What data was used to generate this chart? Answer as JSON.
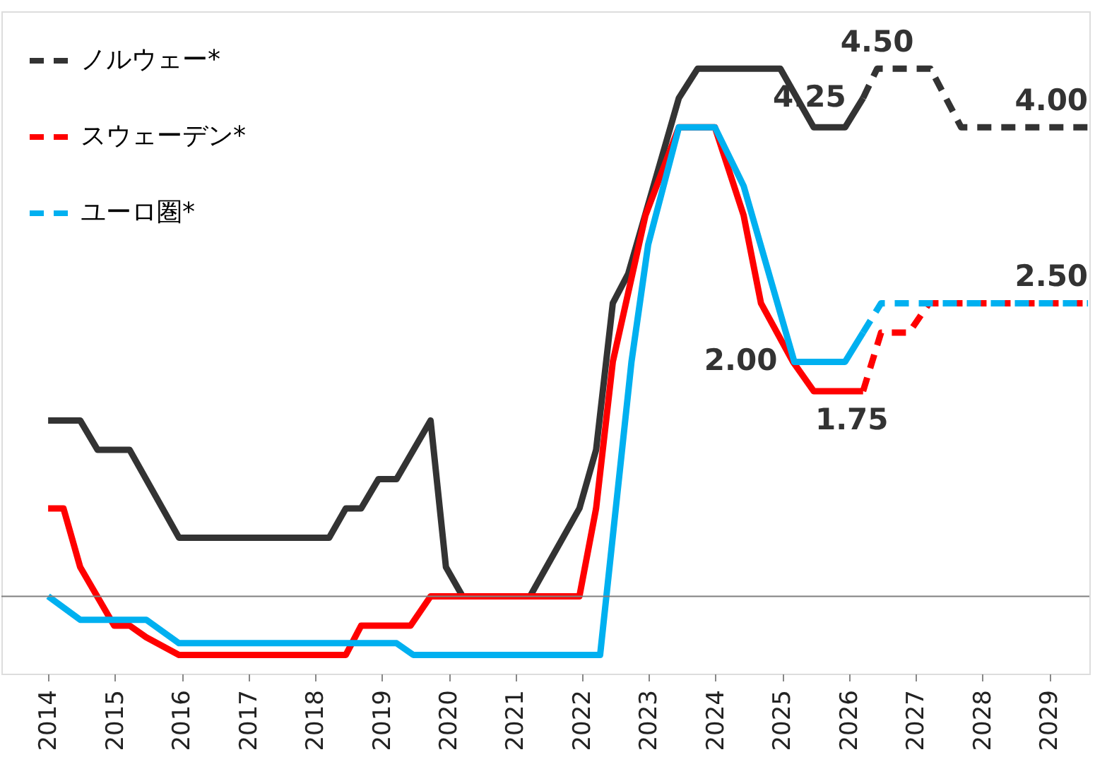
{
  "chart_data": {
    "type": "line",
    "series": [
      {
        "color": "#333333",
        "line_style": "solid",
        "x": [
          2014.0,
          2014.48,
          2014.74,
          2015.22,
          2015.96,
          2018.21,
          2018.46,
          2018.69,
          2018.95,
          2019.22,
          2019.73,
          2019.96,
          2020.21,
          2021.22,
          2021.96,
          2022.21,
          2022.46,
          2022.69,
          2023.45,
          2023.73,
          2024.97,
          2025.47,
          2025.94,
          2026.21
        ],
        "values": [
          1.5,
          1.5,
          1.25,
          1.25,
          0.5,
          0.5,
          0.75,
          0.75,
          1.0,
          1.0,
          1.5,
          0.25,
          0,
          0,
          0.75,
          1.25,
          2.5,
          2.75,
          4.25,
          4.5,
          4.5,
          4.0,
          4.0,
          4.25
        ]
      },
      {
        "name": "ノルウェー*",
        "color": "#333333",
        "line_style": "dashed",
        "x": [
          2026.21,
          2026.42,
          2027.22,
          2027.68,
          2029.58
        ],
        "values": [
          4.25,
          4.5,
          4.5,
          4.0,
          4.0
        ],
        "value_labels": [
          "4.25",
          "4.50",
          null,
          null,
          "4.00"
        ]
      },
      {
        "color": "#ff0000",
        "line_style": "solid",
        "x": [
          2014.0,
          2014.23,
          2014.48,
          2014.99,
          2015.22,
          2015.47,
          2015.96,
          2018.46,
          2018.69,
          2019.43,
          2019.73,
          2021.96,
          2022.21,
          2022.46,
          2022.95,
          2023.45,
          2023.99,
          2024.42,
          2024.68,
          2025.16,
          2025.47,
          2026.21
        ],
        "values": [
          0.75,
          0.75,
          0.25,
          -0.25,
          -0.25,
          -0.35,
          -0.5,
          -0.5,
          -0.25,
          -0.25,
          0,
          0,
          0.75,
          2.0,
          3.25,
          4.0,
          4.0,
          3.25,
          2.5,
          2.0,
          1.75,
          1.75
        ],
        "value_labels": [
          null,
          null,
          null,
          null,
          null,
          null,
          null,
          null,
          null,
          null,
          null,
          null,
          null,
          null,
          null,
          null,
          null,
          null,
          null,
          null,
          null,
          "1.75"
        ]
      },
      {
        "name": "スウェーデン*",
        "color": "#ff0000",
        "line_style": "dashed",
        "x": [
          2026.21,
          2026.48,
          2026.9,
          2027.2,
          2029.58
        ],
        "values": [
          1.75,
          2.25,
          2.25,
          2.5,
          2.5
        ]
      },
      {
        "color": "#00b0f0",
        "line_style": "solid",
        "x": [
          2014.0,
          2014.48,
          2015.47,
          2015.96,
          2019.22,
          2019.47,
          2022.27,
          2022.74,
          2022.99,
          2023.45,
          2023.99,
          2024.42,
          2025.18,
          2025.94,
          2026.21
        ],
        "values": [
          0,
          -0.2,
          -0.2,
          -0.4,
          -0.4,
          -0.5,
          -0.5,
          2.0,
          3.0,
          4.0,
          4.0,
          3.5,
          2.0,
          2.0,
          2.25
        ],
        "value_labels": [
          null,
          null,
          null,
          null,
          null,
          null,
          null,
          null,
          null,
          null,
          null,
          null,
          "2.00",
          null,
          null
        ]
      },
      {
        "name": "ユーロ圏*",
        "color": "#00b0f0",
        "line_style": "dashed",
        "x": [
          2026.21,
          2026.48,
          2029.58
        ],
        "values": [
          2.25,
          2.5,
          2.5
        ],
        "value_labels": [
          null,
          null,
          "2.50"
        ]
      }
    ],
    "xlim": [
      2013.3,
      2029.6
    ],
    "xticks": [
      2014,
      2015,
      2016,
      2017,
      2018,
      2019,
      2020,
      2021,
      2022,
      2023,
      2024,
      2025,
      2026,
      2027,
      2028,
      2029
    ],
    "ylim": [
      -0.66,
      4.99
    ],
    "ref_lines": [
      {
        "axis": "y",
        "value": 0,
        "color": "#808080"
      }
    ],
    "tick_labels": "x",
    "grid": false,
    "legend": "top left",
    "marker": "none"
  }
}
